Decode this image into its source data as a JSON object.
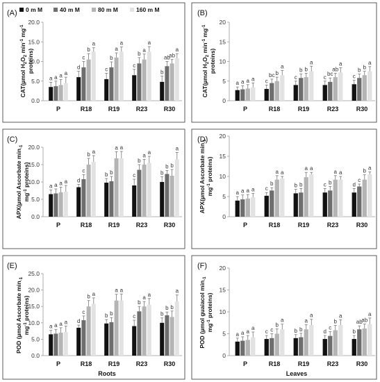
{
  "legend": [
    {
      "label": "0 m M",
      "color": "#111111"
    },
    {
      "label": "40 m M",
      "color": "#6e6e6e"
    },
    {
      "label": "80 m M",
      "color": "#b4b4b4"
    },
    {
      "label": "160 m M",
      "color": "#e2e2e2"
    }
  ],
  "chart_data": [
    {
      "id": "A",
      "type": "bar",
      "panel_label": "(A)",
      "categories": [
        "P",
        "R18",
        "R19",
        "R23",
        "R30"
      ],
      "ylabel": [
        "CAT(µmol H",
        "2",
        "O",
        "2",
        " min",
        "-1",
        " mg",
        "-1"
      ],
      "ylabel2": "proteins)",
      "xlabel": "",
      "ylim": [
        0,
        20
      ],
      "yticks": [
        "0.0",
        "5.0",
        "10.0",
        "15.0",
        "20.0"
      ],
      "yticks_values": [
        0,
        5,
        10,
        15,
        20
      ],
      "series": [
        {
          "name": "0 m M",
          "values": [
            3.5,
            6.0,
            5.5,
            6.5,
            4.8
          ],
          "errors": [
            1.2,
            1.5,
            1.5,
            1.5,
            1.5
          ]
        },
        {
          "name": "40 m M",
          "values": [
            3.7,
            8.5,
            8.5,
            9.5,
            8.8
          ],
          "errors": [
            1.3,
            1.5,
            1.4,
            1.5,
            1.2
          ]
        },
        {
          "name": "80 m M",
          "values": [
            4.0,
            10.5,
            11.0,
            10.5,
            9.5
          ],
          "errors": [
            1.4,
            1.5,
            1.2,
            1.4,
            1.0
          ]
        },
        {
          "name": "160 m M",
          "values": [
            4.5,
            12.5,
            12.5,
            12.5,
            10.8
          ],
          "errors": [
            1.5,
            1.0,
            1.2,
            1.3,
            1.2
          ]
        }
      ],
      "letters": [
        [
          "a",
          "a",
          "a",
          "a"
        ],
        [
          "d",
          "c",
          "b",
          "a"
        ],
        [
          "c",
          "b",
          "a",
          "a"
        ],
        [
          "c",
          "b",
          "a",
          "a"
        ],
        [
          "b",
          "ab",
          "ab",
          "a"
        ]
      ]
    },
    {
      "id": "B",
      "type": "bar",
      "panel_label": "(B)",
      "categories": [
        "P",
        "R18",
        "R19",
        "R23",
        "R30"
      ],
      "ylabel": [
        "CAT(µmol H",
        "2",
        "O",
        "2",
        " min",
        "-1",
        " mg",
        "-1"
      ],
      "ylabel2": "proteins)",
      "xlabel": "",
      "ylim": [
        0,
        20
      ],
      "yticks": [
        "0",
        "5",
        "10",
        "15",
        "20"
      ],
      "yticks_values": [
        0,
        5,
        10,
        15,
        20
      ],
      "series": [
        {
          "name": "0 m M",
          "values": [
            2.7,
            3.0,
            4.0,
            4.0,
            4.2
          ],
          "errors": [
            0.8,
            1.0,
            1.0,
            1.0,
            1.0
          ]
        },
        {
          "name": "40 m M",
          "values": [
            2.9,
            4.5,
            5.8,
            4.8,
            5.8
          ],
          "errors": [
            0.9,
            1.0,
            1.0,
            1.0,
            1.0
          ]
        },
        {
          "name": "80 m M",
          "values": [
            3.1,
            5.0,
            6.0,
            6.0,
            6.5
          ],
          "errors": [
            1.0,
            1.0,
            1.0,
            1.0,
            1.0
          ]
        },
        {
          "name": "160 m M",
          "values": [
            3.4,
            6.5,
            7.5,
            7.2,
            7.5
          ],
          "errors": [
            1.1,
            1.2,
            1.3,
            1.2,
            1.2
          ]
        }
      ],
      "letters": [
        [
          "a",
          "a",
          "a",
          "a"
        ],
        [
          "c",
          "bc",
          "b",
          "a"
        ],
        [
          "c",
          "b",
          "b",
          "a"
        ],
        [
          "c",
          "bc",
          "ab",
          "a"
        ],
        [
          "c",
          "b",
          "b",
          "a"
        ]
      ]
    },
    {
      "id": "C",
      "type": "bar",
      "panel_label": "(C)",
      "categories": [
        "P",
        "R18",
        "R19",
        "R23",
        "R30"
      ],
      "ylabel": [
        "APX(µmol Ascorbate min",
        "-1",
        "",
        "",
        "",
        "",
        "",
        ""
      ],
      "ylabel2": [
        "mg",
        "-1",
        " proteins)"
      ],
      "xlabel": "",
      "ylim": [
        0,
        20
      ],
      "yticks": [
        "0.0",
        "5.0",
        "10.0",
        "15.0",
        "20.0"
      ],
      "yticks_values": [
        0,
        5,
        10,
        15,
        20
      ],
      "series": [
        {
          "name": "0 m M",
          "values": [
            6.5,
            8.5,
            9.8,
            9.0,
            10.0
          ],
          "errors": [
            1.2,
            0.8,
            1.2,
            1.8,
            1.5
          ]
        },
        {
          "name": "40 m M",
          "values": [
            6.7,
            10.8,
            10.2,
            13.5,
            12.3
          ],
          "errors": [
            1.3,
            1.3,
            1.4,
            1.5,
            1.0
          ]
        },
        {
          "name": "80 m M",
          "values": [
            7.0,
            15.0,
            16.8,
            15.0,
            11.8
          ],
          "errors": [
            1.5,
            1.8,
            1.9,
            1.5,
            1.8
          ]
        },
        {
          "name": "160 m M",
          "values": [
            7.2,
            15.8,
            16.8,
            15.5,
            16.5
          ],
          "errors": [
            1.8,
            1.8,
            2.0,
            1.9,
            2.0
          ]
        }
      ],
      "letters": [
        [
          "a",
          "a",
          "a",
          "a"
        ],
        [
          "d",
          "c",
          "b",
          "a"
        ],
        [
          "b",
          "b",
          "a",
          "a"
        ],
        [
          "c",
          "b",
          "a",
          "a"
        ],
        [
          "b",
          "b",
          "b",
          "a"
        ]
      ]
    },
    {
      "id": "D",
      "type": "bar",
      "panel_label": "(D)",
      "categories": [
        "P",
        "R18",
        "R19",
        "R23",
        "R30"
      ],
      "ylabel": [
        "APX(µmol Ascorbate min",
        "-1",
        "",
        "",
        "",
        "",
        "",
        ""
      ],
      "ylabel2": [
        "mg",
        "-1",
        " proteins)"
      ],
      "xlabel": "",
      "ylim": [
        0,
        20
      ],
      "yticks": [
        "0",
        "5",
        "10",
        "15",
        "20"
      ],
      "yticks_values": [
        0,
        5,
        10,
        15,
        20
      ],
      "series": [
        {
          "name": "0 m M",
          "values": [
            4.0,
            5.2,
            5.8,
            6.0,
            6.0
          ],
          "errors": [
            1.0,
            0.8,
            1.0,
            1.0,
            1.0
          ]
        },
        {
          "name": "40 m M",
          "values": [
            4.3,
            6.5,
            6.0,
            6.5,
            7.5
          ],
          "errors": [
            1.1,
            0.7,
            1.0,
            1.0,
            0.6
          ]
        },
        {
          "name": "80 m M",
          "values": [
            4.5,
            9.2,
            9.8,
            9.2,
            9.2
          ],
          "errors": [
            1.0,
            1.0,
            1.2,
            1.0,
            1.2
          ]
        },
        {
          "name": "160 m M",
          "values": [
            4.8,
            9.5,
            10.5,
            9.2,
            10.5
          ],
          "errors": [
            1.0,
            0.5,
            0.5,
            0.8,
            0.6
          ]
        }
      ],
      "letters": [
        [
          "a",
          "a",
          "a",
          "a"
        ],
        [
          "c",
          "b",
          "a",
          "a"
        ],
        [
          "b",
          "b",
          "a",
          "a"
        ],
        [
          "c",
          "b",
          "a",
          "a"
        ],
        [
          "d",
          "c",
          "b",
          "a"
        ]
      ]
    },
    {
      "id": "E",
      "type": "bar",
      "panel_label": "(E)",
      "categories": [
        "P",
        "R18",
        "R19",
        "R23",
        "R30"
      ],
      "ylabel": [
        "POD (µmol Ascorbate min",
        "-1",
        "",
        "",
        "",
        "",
        "",
        ""
      ],
      "ylabel2": [
        "mg",
        "-1",
        " proteins)"
      ],
      "xlabel": "Roots",
      "ylim": [
        0,
        25
      ],
      "yticks": [
        "0.0",
        "5.0",
        "10.0",
        "15.0",
        "20.0",
        "25.0"
      ],
      "yticks_values": [
        0,
        5,
        10,
        15,
        20,
        25
      ],
      "series": [
        {
          "name": "0 m M",
          "values": [
            6.5,
            8.5,
            9.8,
            9.0,
            10.0
          ],
          "errors": [
            1.2,
            0.8,
            1.2,
            1.8,
            1.5
          ]
        },
        {
          "name": "40 m M",
          "values": [
            6.7,
            10.8,
            10.2,
            13.5,
            12.3
          ],
          "errors": [
            1.3,
            1.3,
            1.4,
            1.5,
            1.0
          ]
        },
        {
          "name": "80 m M",
          "values": [
            7.0,
            15.0,
            16.8,
            15.0,
            11.8
          ],
          "errors": [
            1.5,
            1.8,
            1.9,
            1.5,
            1.8
          ]
        },
        {
          "name": "160 m M",
          "values": [
            7.2,
            15.8,
            16.8,
            15.5,
            16.5
          ],
          "errors": [
            1.8,
            1.8,
            2.0,
            1.9,
            2.0
          ]
        }
      ],
      "letters": [
        [
          "a",
          "a",
          "a",
          "a"
        ],
        [
          "d",
          "c",
          "b",
          "a"
        ],
        [
          "b",
          "b",
          "a",
          "a"
        ],
        [
          "c",
          "b",
          "a",
          "a"
        ],
        [
          "b",
          "b",
          "b",
          "a"
        ]
      ]
    },
    {
      "id": "F",
      "type": "bar",
      "panel_label": "(F)",
      "categories": [
        "P",
        "R18",
        "R19",
        "R23",
        "R30"
      ],
      "ylabel": [
        "POD (µmol guaiacol min",
        "-1",
        "",
        "",
        "",
        "",
        "",
        ""
      ],
      "ylabel2": [
        "mg",
        "-1",
        " proteins)"
      ],
      "xlabel": "Leaves",
      "ylim": [
        0,
        20
      ],
      "yticks": [
        "0",
        "5",
        "10",
        "15",
        "20"
      ],
      "yticks_values": [
        0,
        5,
        10,
        15,
        20
      ],
      "series": [
        {
          "name": "0 m M",
          "values": [
            3.2,
            3.8,
            4.0,
            3.8,
            3.8
          ],
          "errors": [
            0.8,
            0.8,
            0.8,
            0.8,
            0.8
          ]
        },
        {
          "name": "40 m M",
          "values": [
            3.4,
            4.0,
            4.2,
            4.5,
            6.0
          ],
          "errors": [
            0.9,
            1.0,
            0.9,
            1.0,
            0.8
          ]
        },
        {
          "name": "80 m M",
          "values": [
            3.6,
            5.0,
            6.0,
            5.8,
            6.2
          ],
          "errors": [
            1.0,
            1.1,
            1.1,
            1.1,
            1.0
          ]
        },
        {
          "name": "160 m M",
          "values": [
            4.2,
            6.0,
            7.0,
            7.0,
            7.2
          ],
          "errors": [
            1.2,
            1.2,
            1.3,
            1.2,
            1.4
          ]
        }
      ],
      "letters": [
        [
          "a",
          "a",
          "a",
          "a"
        ],
        [
          "c",
          "c",
          "b",
          "a"
        ],
        [
          "b",
          "b",
          "a",
          "a"
        ],
        [
          "d",
          "c",
          "b",
          "a"
        ],
        [
          "b",
          "ab",
          "ab",
          "a"
        ]
      ]
    }
  ]
}
